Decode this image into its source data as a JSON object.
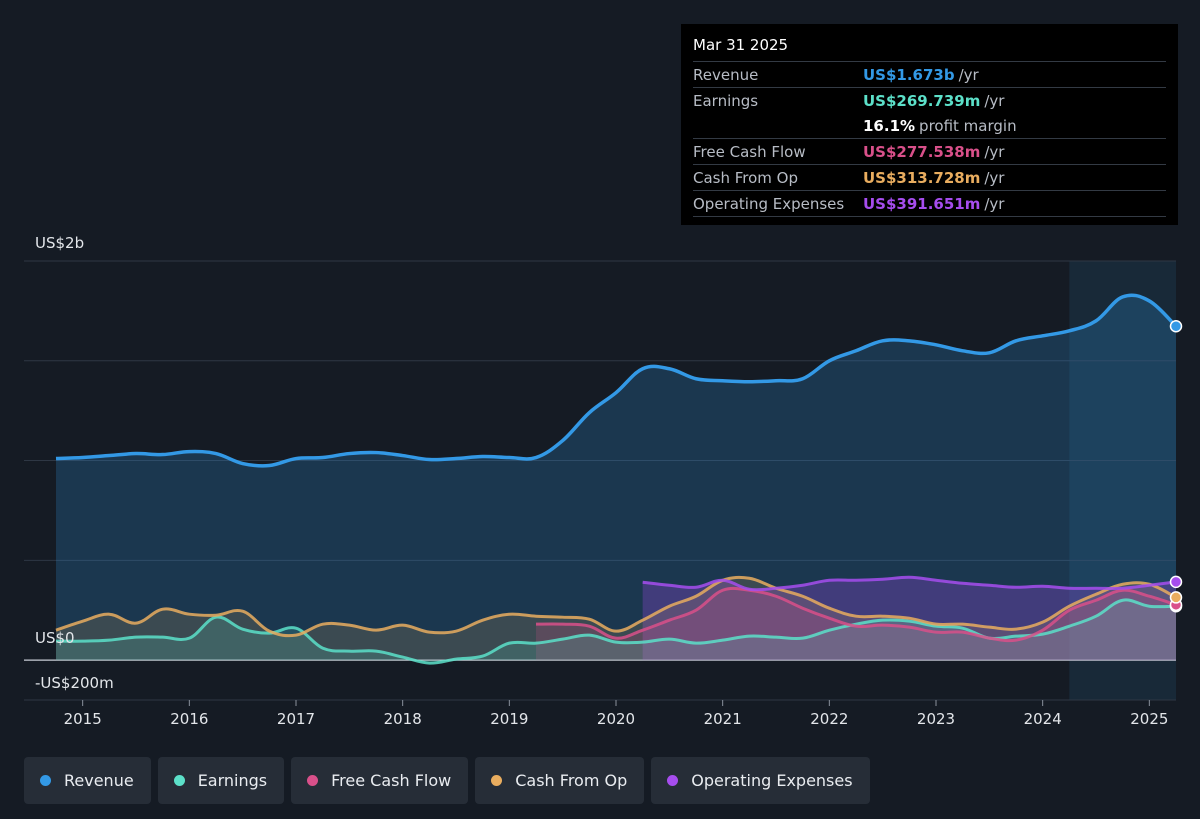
{
  "tooltip": {
    "date": "Mar 31 2025",
    "rows": [
      {
        "label": "Revenue",
        "value": "US$1.673b",
        "unit": "/yr",
        "color": "#3399e6"
      },
      {
        "label": "Earnings",
        "value": "US$269.739m",
        "unit": "/yr",
        "color": "#5ce0c9"
      },
      {
        "label": "",
        "value": "16.1%",
        "unit": "profit margin",
        "color": "#ffffff"
      },
      {
        "label": "Free Cash Flow",
        "value": "US$277.538m",
        "unit": "/yr",
        "color": "#d9508a"
      },
      {
        "label": "Cash From Op",
        "value": "US$313.728m",
        "unit": "/yr",
        "color": "#e9ad5f"
      },
      {
        "label": "Operating Expenses",
        "value": "US$391.651m",
        "unit": "/yr",
        "color": "#a64dee"
      }
    ]
  },
  "legend": [
    {
      "label": "Revenue",
      "color": "#3399e6"
    },
    {
      "label": "Earnings",
      "color": "#5ce0c9"
    },
    {
      "label": "Free Cash Flow",
      "color": "#d9508a"
    },
    {
      "label": "Cash From Op",
      "color": "#e9ad5f"
    },
    {
      "label": "Operating Expenses",
      "color": "#a64dee"
    }
  ],
  "chart_data": {
    "type": "area",
    "title": "",
    "xlabel": "",
    "ylabel": "",
    "y_tick_labels": [
      "US$2b",
      "US$0",
      "-US$200m"
    ],
    "ylim": [
      -200,
      2000
    ],
    "xlim": [
      2014.45,
      2025.25
    ],
    "x_ticks": [
      2015,
      2016,
      2017,
      2018,
      2019,
      2020,
      2021,
      2022,
      2023,
      2024,
      2025
    ],
    "forecast_shade_start": 2024.25,
    "series": [
      {
        "name": "Revenue",
        "color": "#3399e6",
        "x": [
          2014.75,
          2015.0,
          2015.25,
          2015.5,
          2015.75,
          2016.0,
          2016.25,
          2016.5,
          2016.75,
          2017.0,
          2017.25,
          2017.5,
          2017.75,
          2018.0,
          2018.25,
          2018.5,
          2018.75,
          2019.0,
          2019.25,
          2019.5,
          2019.75,
          2020.0,
          2020.25,
          2020.5,
          2020.75,
          2021.0,
          2021.25,
          2021.5,
          2021.75,
          2022.0,
          2022.25,
          2022.5,
          2022.75,
          2023.0,
          2023.25,
          2023.5,
          2023.75,
          2024.0,
          2024.25,
          2024.5,
          2024.75,
          2025.0,
          2025.25
        ],
        "values": [
          1010,
          1015,
          1025,
          1035,
          1030,
          1045,
          1035,
          985,
          975,
          1010,
          1015,
          1035,
          1040,
          1025,
          1005,
          1010,
          1020,
          1015,
          1015,
          1100,
          1240,
          1340,
          1460,
          1460,
          1410,
          1400,
          1395,
          1400,
          1410,
          1500,
          1550,
          1600,
          1600,
          1580,
          1550,
          1540,
          1600,
          1625,
          1650,
          1700,
          1820,
          1800,
          1673
        ]
      },
      {
        "name": "Earnings",
        "color": "#5ce0c9",
        "x": [
          2014.75,
          2015.0,
          2015.25,
          2015.5,
          2015.75,
          2016.0,
          2016.25,
          2016.5,
          2016.75,
          2017.0,
          2017.25,
          2017.5,
          2017.75,
          2018.0,
          2018.25,
          2018.5,
          2018.75,
          2019.0,
          2019.25,
          2019.5,
          2019.75,
          2020.0,
          2020.25,
          2020.5,
          2020.75,
          2021.0,
          2021.25,
          2021.5,
          2021.75,
          2022.0,
          2022.25,
          2022.5,
          2022.75,
          2023.0,
          2023.25,
          2023.5,
          2023.75,
          2024.0,
          2024.25,
          2024.5,
          2024.75,
          2025.0,
          2025.25
        ],
        "values": [
          95,
          95,
          100,
          115,
          115,
          110,
          215,
          155,
          135,
          160,
          60,
          45,
          45,
          15,
          -15,
          5,
          20,
          85,
          85,
          105,
          125,
          90,
          90,
          105,
          85,
          100,
          120,
          115,
          110,
          150,
          180,
          200,
          195,
          170,
          160,
          110,
          120,
          130,
          170,
          220,
          300,
          270,
          270
        ]
      },
      {
        "name": "Free Cash Flow",
        "color": "#d9508a",
        "x": [
          2019.25,
          2019.5,
          2019.75,
          2020.0,
          2020.25,
          2020.5,
          2020.75,
          2021.0,
          2021.25,
          2021.5,
          2021.75,
          2022.0,
          2022.25,
          2022.5,
          2022.75,
          2023.0,
          2023.25,
          2023.5,
          2023.75,
          2024.0,
          2024.25,
          2024.5,
          2024.75,
          2025.0,
          2025.25
        ],
        "values": [
          180,
          180,
          170,
          110,
          150,
          200,
          250,
          350,
          350,
          320,
          260,
          210,
          170,
          175,
          165,
          140,
          140,
          110,
          100,
          150,
          250,
          300,
          350,
          320,
          277
        ]
      },
      {
        "name": "Cash From Op",
        "color": "#e9ad5f",
        "x": [
          2014.75,
          2015.0,
          2015.25,
          2015.5,
          2015.75,
          2016.0,
          2016.25,
          2016.5,
          2016.75,
          2017.0,
          2017.25,
          2017.5,
          2017.75,
          2018.0,
          2018.25,
          2018.5,
          2018.75,
          2019.0,
          2019.25,
          2019.5,
          2019.75,
          2020.0,
          2020.25,
          2020.5,
          2020.75,
          2021.0,
          2021.25,
          2021.5,
          2021.75,
          2022.0,
          2022.25,
          2022.5,
          2022.75,
          2023.0,
          2023.25,
          2023.5,
          2023.75,
          2024.0,
          2024.25,
          2024.5,
          2024.75,
          2025.0,
          2025.25
        ],
        "values": [
          150,
          195,
          230,
          185,
          255,
          230,
          225,
          245,
          145,
          125,
          180,
          175,
          150,
          175,
          140,
          145,
          200,
          230,
          220,
          215,
          205,
          145,
          200,
          270,
          320,
          400,
          410,
          360,
          320,
          260,
          220,
          220,
          210,
          180,
          180,
          165,
          155,
          190,
          270,
          330,
          380,
          380,
          314
        ]
      },
      {
        "name": "Operating Expenses",
        "color": "#a64dee",
        "x": [
          2020.25,
          2020.5,
          2020.75,
          2021.0,
          2021.25,
          2021.5,
          2021.75,
          2022.0,
          2022.25,
          2022.5,
          2022.75,
          2023.0,
          2023.25,
          2023.5,
          2023.75,
          2024.0,
          2024.25,
          2024.5,
          2024.75,
          2025.0,
          2025.25
        ],
        "values": [
          390,
          375,
          365,
          400,
          355,
          360,
          375,
          400,
          400,
          405,
          415,
          400,
          385,
          375,
          365,
          370,
          360,
          360,
          360,
          375,
          392
        ]
      }
    ]
  }
}
